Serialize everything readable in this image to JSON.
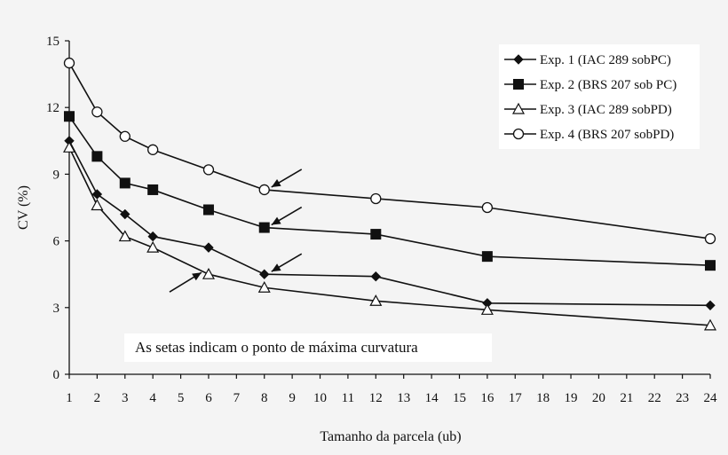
{
  "chart_data": {
    "type": "line",
    "xlabel": "Tamanho da parcela (ub)",
    "ylabel": "CV (%)",
    "xlim": [
      1,
      24
    ],
    "ylim": [
      0,
      15
    ],
    "x_ticks": [
      1,
      2,
      3,
      4,
      5,
      6,
      7,
      8,
      9,
      10,
      11,
      12,
      13,
      14,
      15,
      16,
      17,
      18,
      19,
      20,
      21,
      22,
      23,
      24
    ],
    "y_ticks": [
      0,
      3,
      6,
      9,
      12,
      15
    ],
    "grid": false,
    "legend_position": "top-right",
    "annotation": "As setas indicam o ponto de máxima curvatura",
    "series": [
      {
        "name": "Exp. 1 (IAC 289 sobPC)",
        "marker": "diamond-filled",
        "x": [
          1,
          2,
          3,
          4,
          6,
          8,
          12,
          16,
          24
        ],
        "y": [
          10.5,
          8.1,
          7.2,
          6.2,
          5.7,
          4.5,
          4.4,
          3.2,
          3.1
        ]
      },
      {
        "name": "Exp. 2 (BRS 207 sob PC)",
        "marker": "square-filled",
        "x": [
          1,
          2,
          3,
          4,
          6,
          8,
          12,
          16,
          24
        ],
        "y": [
          11.6,
          9.8,
          8.6,
          8.3,
          7.4,
          6.6,
          6.3,
          5.3,
          4.9
        ]
      },
      {
        "name": "Exp. 3 (IAC 289 sobPD)",
        "marker": "triangle-open",
        "x": [
          1,
          2,
          3,
          4,
          6,
          8,
          12,
          16,
          24
        ],
        "y": [
          10.2,
          7.6,
          6.2,
          5.7,
          4.5,
          3.9,
          3.3,
          2.9,
          2.2
        ]
      },
      {
        "name": "Exp. 4 (BRS 207 sobPD)",
        "marker": "circle-open",
        "x": [
          1,
          2,
          3,
          4,
          6,
          8,
          12,
          16,
          24
        ],
        "y": [
          14.0,
          11.8,
          10.7,
          10.1,
          9.2,
          8.3,
          7.9,
          7.5,
          6.1
        ]
      }
    ],
    "arrows": [
      {
        "series": 3,
        "x": 8,
        "y": 8.3
      },
      {
        "series": 1,
        "x": 8,
        "y": 6.6
      },
      {
        "series": 0,
        "x": 8,
        "y": 4.5
      },
      {
        "series": 2,
        "x": 6,
        "y": 4.5
      }
    ]
  }
}
